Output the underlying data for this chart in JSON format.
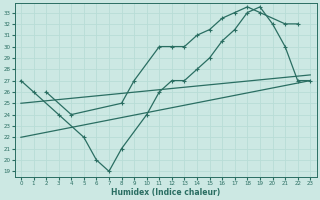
{
  "bg_color": "#cce8e3",
  "grid_color": "#b8ddd7",
  "line_color": "#2a6e62",
  "xlabel": "Humidex (Indice chaleur)",
  "xlim": [
    -0.5,
    23.5
  ],
  "ylim": [
    18.5,
    33.8
  ],
  "xticks": [
    0,
    1,
    2,
    3,
    4,
    5,
    6,
    7,
    8,
    9,
    10,
    11,
    12,
    13,
    14,
    15,
    16,
    17,
    18,
    19,
    20,
    21,
    22,
    23
  ],
  "yticks": [
    19,
    20,
    21,
    22,
    23,
    24,
    25,
    26,
    27,
    28,
    29,
    30,
    31,
    32,
    33
  ],
  "curve1_x": [
    0,
    1,
    3,
    5,
    6,
    7,
    8,
    10,
    11,
    12,
    13,
    14,
    15,
    16,
    17,
    18,
    19,
    20,
    21,
    22,
    23
  ],
  "curve1_y": [
    27,
    26,
    24,
    22,
    20,
    19,
    21,
    24,
    26,
    27,
    27,
    28,
    29,
    30.5,
    31.5,
    33,
    33.5,
    32,
    30,
    27,
    27
  ],
  "curve2_x": [
    2,
    4,
    8,
    9,
    11,
    12,
    13,
    14,
    15,
    16,
    17,
    18,
    19,
    21,
    22
  ],
  "curve2_y": [
    26,
    24,
    25,
    27,
    30,
    30,
    30,
    31,
    31.5,
    32.5,
    33,
    33.5,
    33,
    32,
    32
  ],
  "line1_x": [
    0,
    23
  ],
  "line1_y": [
    25,
    27.5
  ],
  "line2_x": [
    0,
    23
  ],
  "line2_y": [
    22,
    27
  ]
}
